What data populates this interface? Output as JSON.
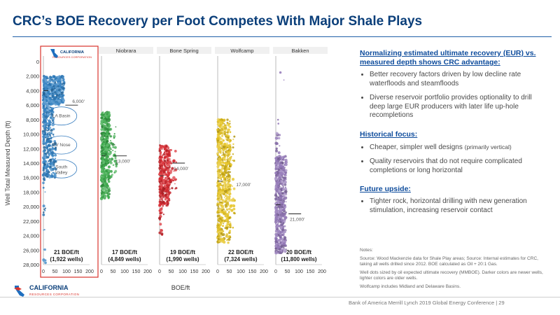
{
  "page": {
    "title": "CRC’s BOE Recovery per Foot Competes With Major Shale Plays",
    "footer": "Bank of America Merrill Lynch 2019 Global Energy Conference | 29",
    "logo": {
      "name": "CALIFORNIA",
      "sub": "RESOURCES CORPORATION"
    }
  },
  "right_panel": {
    "section1": {
      "heading": "Normalizing estimated ultimate recovery (EUR) vs. measured depth shows CRC advantage:",
      "bullets": [
        "Better recovery factors driven by low decline rate waterfloods and steamfloods",
        "Diverse reservoir portfolio provides optionality to drill deep large EUR producers with later life up-hole recompletions"
      ]
    },
    "section2": {
      "heading": "Historical focus:",
      "bullet1_main": "Cheaper, simpler well designs ",
      "bullet1_small": "(primarily vertical)",
      "bullet2": "Quality reservoirs that do not require complicated completions or long horizontal"
    },
    "section3": {
      "heading": "Future upside:",
      "bullets": [
        "Tighter rock, horizontal drilling with new generation stimulation, increasing reservoir contact"
      ]
    },
    "notes": [
      "Notes:",
      "Source: Wood Mackenzie data for Shale Play areas; Source: Internal estimates for CRC, taking all wells drilled since 2012. BOE calculated as Oil + 20:1 Gas.",
      "Well dots sized by oil expected ultimate recovery (MMBOE). Darker colors are newer wells, lighter colors are older wells.",
      "Wolfcamp includes Midland and Delaware Basins."
    ]
  },
  "chart_data": {
    "type": "scatter",
    "ylabel": "Well Total Measured Depth (ft)",
    "xlabel": "BOE/ft",
    "ylim": [
      0,
      28000
    ],
    "y_ticks": [
      "0",
      "2,000",
      "4,000",
      "6,000",
      "8,000",
      "10,000",
      "12,000",
      "14,000",
      "16,000",
      "18,000",
      "20,000",
      "22,000",
      "24,000",
      "26,000",
      "28,000"
    ],
    "x_ticks": [
      "0",
      "50",
      "100",
      "150",
      "200"
    ],
    "logo_label": "CALIFORNIA RESOURCES CORPORATION",
    "panels": [
      {
        "name": "",
        "color": "#2f7fc1",
        "mean_boe_ft": 21,
        "boe_label": "21 BOE/ft",
        "wells_label": "(1,922 wells)",
        "highlight": true,
        "clusters": [
          {
            "y0": 2000,
            "y1": 6000,
            "x0": 0,
            "x1": 90,
            "n": 420
          },
          {
            "y0": 6000,
            "y1": 11000,
            "x0": 0,
            "x1": 45,
            "n": 150
          },
          {
            "y0": 11000,
            "y1": 16000,
            "x0": 0,
            "x1": 55,
            "n": 150
          },
          {
            "y0": 16000,
            "y1": 28000,
            "x0": 0,
            "x1": 10,
            "n": 20
          }
        ],
        "annotations": [
          {
            "label": "6,000'",
            "type": "line",
            "y": 6000
          },
          {
            "label": "LA Basin",
            "type": "ellipse",
            "y": 7500
          },
          {
            "label": "EV Nose",
            "type": "ellipse",
            "y": 11500
          },
          {
            "label": "South Valley",
            "type": "ellipse",
            "y": 14800
          }
        ]
      },
      {
        "name": "Niobrara",
        "color": "#3aaa4a",
        "mean_boe_ft": 17,
        "boe_label": "17 BOE/ft",
        "wells_label": "(4,849 wells)",
        "highlight": false,
        "clusters": [
          {
            "y0": 7000,
            "y1": 19000,
            "x0": 0,
            "x1": 35,
            "n": 480
          },
          {
            "y0": 9000,
            "y1": 16000,
            "x0": 25,
            "x1": 65,
            "n": 60
          }
        ],
        "annotations": [
          {
            "label": "13,000'",
            "type": "line",
            "y": 13000
          }
        ]
      },
      {
        "name": "Bone Spring",
        "color": "#d8282f",
        "mean_boe_ft": 19,
        "boe_label": "19 BOE/ft",
        "wells_label": "(1,990 wells)",
        "highlight": false,
        "clusters": [
          {
            "y0": 11500,
            "y1": 20000,
            "x0": 0,
            "x1": 45,
            "n": 330
          },
          {
            "y0": 12000,
            "y1": 18000,
            "x0": 35,
            "x1": 75,
            "n": 40
          },
          {
            "y0": 19000,
            "y1": 24000,
            "x0": 0,
            "x1": 20,
            "n": 20
          }
        ],
        "annotations": [
          {
            "label": "14,000'",
            "type": "line",
            "y": 14000
          }
        ]
      },
      {
        "name": "Wolfcamp",
        "color": "#e5c21d",
        "mean_boe_ft": 22,
        "boe_label": "22 BOE/ft",
        "wells_label": "(7,324 wells)",
        "highlight": false,
        "clusters": [
          {
            "y0": 8000,
            "y1": 25000,
            "x0": 0,
            "x1": 55,
            "n": 620
          },
          {
            "y0": 10000,
            "y1": 23000,
            "x0": 40,
            "x1": 75,
            "n": 70
          }
        ],
        "annotations": [
          {
            "label": "17,000'",
            "type": "text",
            "y": 17000
          }
        ]
      },
      {
        "name": "Bakken",
        "color": "#9378b8",
        "mean_boe_ft": 20,
        "boe_label": "20 BOE/ft",
        "wells_label": "(11,800 wells)",
        "highlight": false,
        "clusters": [
          {
            "y0": 13000,
            "y1": 26500,
            "x0": 0,
            "x1": 45,
            "n": 620
          },
          {
            "y0": 8000,
            "y1": 14000,
            "x0": 0,
            "x1": 20,
            "n": 20
          },
          {
            "y0": 1500,
            "y1": 3000,
            "x0": 20,
            "x1": 80,
            "n": 2
          }
        ],
        "annotations": [
          {
            "label": "21,000'",
            "type": "line",
            "y": 21000
          }
        ]
      }
    ]
  }
}
